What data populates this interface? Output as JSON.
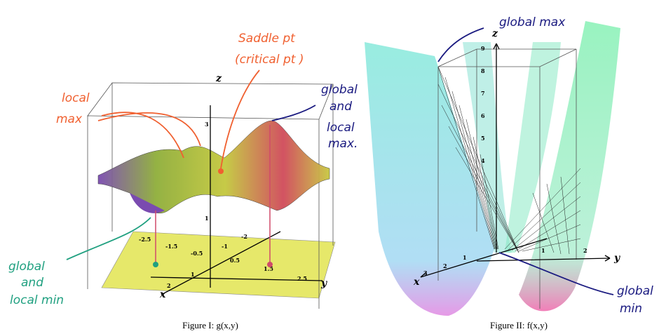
{
  "figures": [
    {
      "caption": "Figure I: g(x,y)",
      "axis_labels": {
        "x": "x",
        "y": "y",
        "z": "z"
      },
      "z_ticks": [
        "3",
        "1"
      ],
      "floor_ticks": [
        "-2.5",
        "-1.5",
        "-0.5",
        "-1",
        "-2",
        "0.5",
        "1",
        "2",
        "1.5",
        "2.5"
      ],
      "annotations": {
        "local_max": [
          "local",
          "max"
        ],
        "saddle": [
          "Saddle pt",
          "(critical pt )"
        ],
        "global_local_max": [
          "global",
          "and",
          "local",
          "max."
        ],
        "global_local_min": [
          "global",
          "and",
          "local min"
        ]
      }
    },
    {
      "caption": "Figure II: f(x,y)",
      "axis_labels": {
        "x": "x",
        "y": "y",
        "z": "z"
      },
      "z_ticks": [
        "9",
        "8",
        "7",
        "6",
        "5",
        "4"
      ],
      "y_ticks": [
        "1",
        "2"
      ],
      "x_ticks": [
        "1",
        "2",
        "3"
      ],
      "annotations": {
        "global_max": [
          "global max"
        ],
        "global_min": [
          "global",
          "min"
        ]
      }
    }
  ]
}
